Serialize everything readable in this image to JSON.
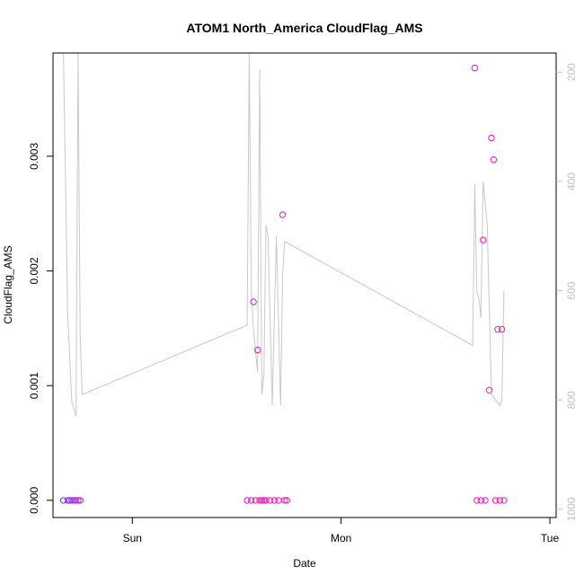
{
  "chart_data": {
    "type": "scatter",
    "title": "ATOM1 North_America CloudFlag_AMS",
    "xlabel": "Date",
    "ylabel": "CloudFlag_AMS",
    "x_ticks": [
      "Sun",
      "Mon",
      "Tue"
    ],
    "y_ticks": [
      "0.000",
      "0.001",
      "0.002",
      "0.003"
    ],
    "y2_ticks": [
      "200",
      "400",
      "600",
      "800",
      "1000"
    ],
    "xlim": [
      -0.38,
      2.03
    ],
    "ylim": [
      -0.00015,
      0.0039
    ],
    "y2lim": [
      1015,
      165
    ],
    "y2_reversed": true,
    "grid": false,
    "colors": {
      "line": "#c8c8c8",
      "y2_axis": "#c0c0c0",
      "points_start": "#7a30ff",
      "points_end": "#ff14b4"
    },
    "points": [
      {
        "x": -0.33,
        "y": 0.0
      },
      {
        "x": -0.31,
        "y": 0.0
      },
      {
        "x": -0.3,
        "y": 0.0
      },
      {
        "x": -0.29,
        "y": 0.0
      },
      {
        "x": -0.28,
        "y": 0.0
      },
      {
        "x": -0.27,
        "y": 0.0
      },
      {
        "x": -0.26,
        "y": 0.0
      },
      {
        "x": -0.25,
        "y": 0.0
      },
      {
        "x": 0.55,
        "y": 0.0
      },
      {
        "x": 0.57,
        "y": 0.0
      },
      {
        "x": 0.58,
        "y": 0.00173
      },
      {
        "x": 0.59,
        "y": 0.0
      },
      {
        "x": 0.6,
        "y": 0.00131
      },
      {
        "x": 0.61,
        "y": 0.0
      },
      {
        "x": 0.62,
        "y": 0.0
      },
      {
        "x": 0.63,
        "y": 0.0
      },
      {
        "x": 0.64,
        "y": 0.0
      },
      {
        "x": 0.66,
        "y": 0.0
      },
      {
        "x": 0.68,
        "y": 0.0
      },
      {
        "x": 0.7,
        "y": 0.0
      },
      {
        "x": 0.72,
        "y": 0.00249
      },
      {
        "x": 0.73,
        "y": 0.0
      },
      {
        "x": 0.74,
        "y": 0.0
      },
      {
        "x": 1.64,
        "y": 0.00377
      },
      {
        "x": 1.65,
        "y": 0.0
      },
      {
        "x": 1.67,
        "y": 0.0
      },
      {
        "x": 1.68,
        "y": 0.00227
      },
      {
        "x": 1.69,
        "y": 0.0
      },
      {
        "x": 1.71,
        "y": 0.00096
      },
      {
        "x": 1.72,
        "y": 0.00316
      },
      {
        "x": 1.73,
        "y": 0.00297
      },
      {
        "x": 1.74,
        "y": 0.0
      },
      {
        "x": 1.75,
        "y": 0.00149
      },
      {
        "x": 1.76,
        "y": 0.0
      },
      {
        "x": 1.77,
        "y": 0.00149
      },
      {
        "x": 1.78,
        "y": 0.0
      }
    ],
    "line_y2": [
      {
        "x": -0.33,
        "y": 150
      },
      {
        "x": -0.31,
        "y": 640
      },
      {
        "x": -0.29,
        "y": 803
      },
      {
        "x": -0.27,
        "y": 830
      },
      {
        "x": -0.26,
        "y": 150
      },
      {
        "x": -0.25,
        "y": 680
      },
      {
        "x": -0.24,
        "y": 790
      },
      {
        "x": 0.55,
        "y": 663
      },
      {
        "x": 0.56,
        "y": 150
      },
      {
        "x": 0.57,
        "y": 600
      },
      {
        "x": 0.58,
        "y": 670
      },
      {
        "x": 0.6,
        "y": 750
      },
      {
        "x": 0.61,
        "y": 195
      },
      {
        "x": 0.62,
        "y": 790
      },
      {
        "x": 0.63,
        "y": 755
      },
      {
        "x": 0.64,
        "y": 480
      },
      {
        "x": 0.65,
        "y": 500
      },
      {
        "x": 0.67,
        "y": 810
      },
      {
        "x": 0.69,
        "y": 500
      },
      {
        "x": 0.71,
        "y": 810
      },
      {
        "x": 0.72,
        "y": 570
      },
      {
        "x": 0.73,
        "y": 510
      },
      {
        "x": 1.63,
        "y": 700
      },
      {
        "x": 1.64,
        "y": 405
      },
      {
        "x": 1.65,
        "y": 600
      },
      {
        "x": 1.66,
        "y": 615
      },
      {
        "x": 1.67,
        "y": 650
      },
      {
        "x": 1.68,
        "y": 400
      },
      {
        "x": 1.7,
        "y": 480
      },
      {
        "x": 1.72,
        "y": 790
      },
      {
        "x": 1.74,
        "y": 800
      },
      {
        "x": 1.76,
        "y": 810
      },
      {
        "x": 1.77,
        "y": 800
      },
      {
        "x": 1.78,
        "y": 600
      }
    ]
  }
}
